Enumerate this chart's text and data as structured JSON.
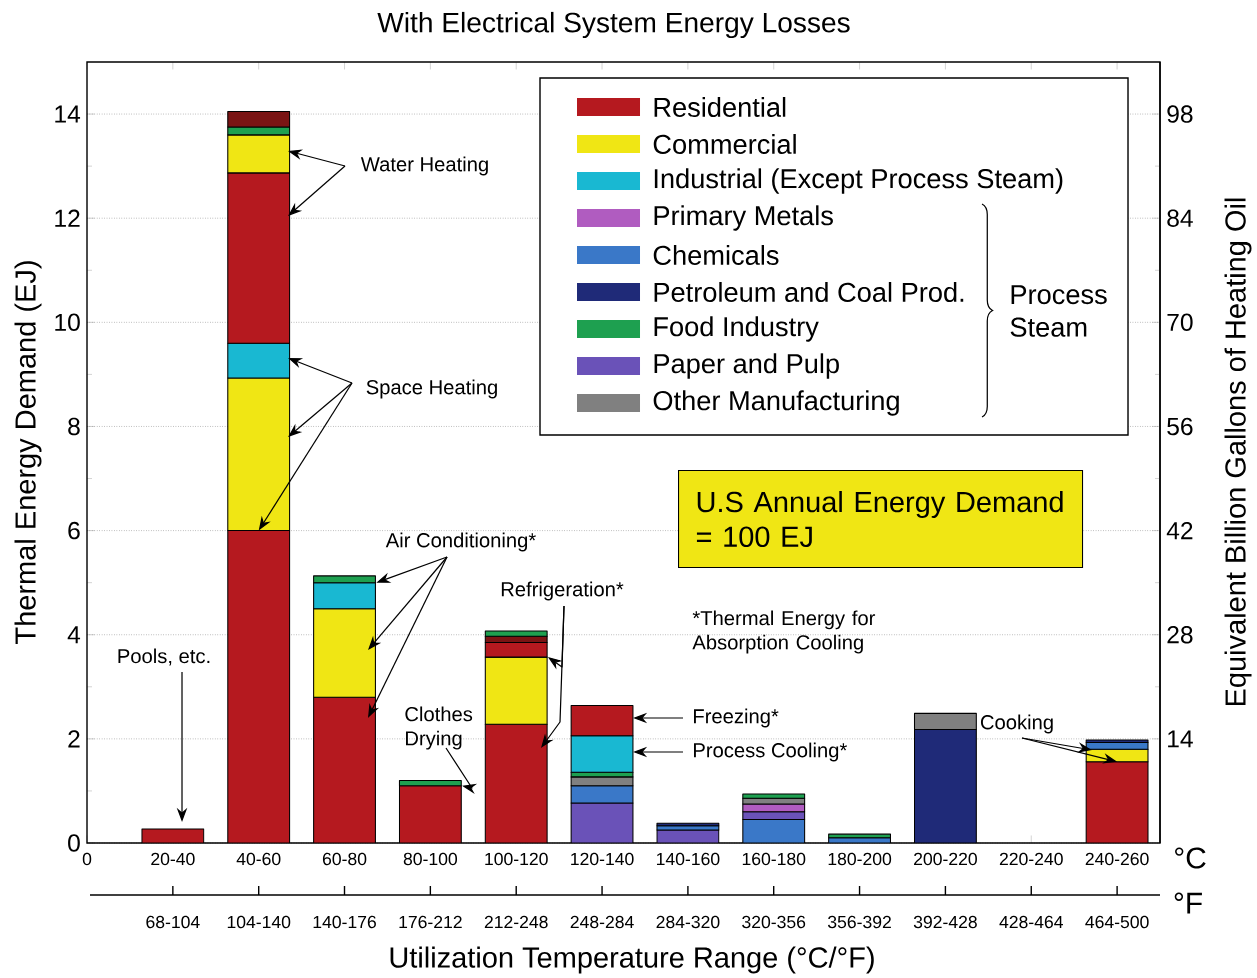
{
  "chart_data": {
    "type": "bar",
    "stacked": true,
    "title": "With Electrical System Energy Losses",
    "xlabel": "Utilization Temperature Range (°C/°F)",
    "ylabel": "Thermal Energy Demand (EJ)",
    "y2label": "Equivalent Billion Gallons of Heating Oil",
    "categories": [
      "0",
      "20-40",
      "40-60",
      "60-80",
      "80-100",
      "100-120",
      "120-140",
      "140-160",
      "160-180",
      "180-200",
      "200-220",
      "220-240",
      "240-260"
    ],
    "ylim": [
      0,
      15
    ],
    "yticks": [
      0,
      2,
      4,
      6,
      8,
      10,
      12,
      14
    ],
    "y2lim": [
      0,
      105
    ],
    "y2ticks": [
      14,
      28,
      42,
      56,
      70,
      84,
      98
    ],
    "grid": "y",
    "legend": "top right",
    "series": [
      {
        "name": "Residential",
        "color": "#b5191f",
        "values": [
          null,
          0.27,
          6.0,
          2.8,
          1.1,
          2.28,
          null,
          null,
          null,
          null,
          null,
          null,
          1.56
        ]
      },
      {
        "name": "Commercial",
        "color": "#f0e614",
        "values": [
          null,
          null,
          2.93,
          1.7,
          null,
          1.29,
          null,
          null,
          null,
          null,
          null,
          null,
          0.24
        ]
      },
      {
        "name": "Industrial (Except Process Steam)",
        "color": "#19b8d2",
        "values": [
          null,
          null,
          0.67,
          0.5,
          null,
          null,
          null,
          null,
          null,
          null,
          null,
          null,
          null
        ]
      },
      {
        "color": "#b5191f",
        "values": [
          null,
          null,
          3.27,
          null,
          null,
          0.28,
          null,
          null,
          null,
          null,
          null,
          null,
          null
        ]
      },
      {
        "color": "#f0e614",
        "values": [
          null,
          null,
          0.73,
          null,
          null,
          null,
          null,
          null,
          null,
          null,
          null,
          null,
          null
        ]
      },
      {
        "color": "#3a78c8",
        "values": [
          null,
          null,
          null,
          null,
          null,
          null,
          null,
          null,
          0.45,
          null,
          null,
          null,
          null
        ]
      },
      {
        "color": "#6a52b8",
        "values": [
          null,
          null,
          null,
          null,
          null,
          null,
          null,
          null,
          0.15,
          null,
          null,
          null,
          null
        ]
      },
      {
        "name": "Primary Metals",
        "color": "#b05cc0",
        "values": [
          null,
          null,
          null,
          null,
          null,
          null,
          null,
          null,
          0.15,
          null,
          null,
          null,
          null
        ]
      },
      {
        "name": "Chemicals",
        "color": "#3a78c8",
        "values": [
          null,
          null,
          null,
          null,
          null,
          null,
          null,
          null,
          null,
          0.1,
          null,
          null,
          0.13
        ]
      },
      {
        "name": "Petroleum and Coal Prod.",
        "color": "#1f2a78",
        "values": [
          null,
          null,
          null,
          null,
          null,
          null,
          null,
          null,
          null,
          null,
          2.18,
          null,
          0.05
        ]
      },
      {
        "name": "Food Industry",
        "color": "#1ea050",
        "values": [
          null,
          null,
          0.15,
          0.13,
          0.1,
          null,
          null,
          null,
          null,
          0.07,
          null,
          null,
          null
        ]
      },
      {
        "name": "Paper and Pulp",
        "color": "#6a52b8",
        "values": [
          null,
          null,
          null,
          null,
          null,
          null,
          0.77,
          0.25,
          null,
          null,
          null,
          null,
          null
        ]
      },
      {
        "name": "Other Manufacturing",
        "color": "#808080",
        "values": [
          null,
          null,
          null,
          null,
          null,
          null,
          null,
          null,
          null,
          null,
          0.31,
          null,
          null
        ]
      },
      {
        "color": "#3a78c8",
        "values": [
          null,
          null,
          null,
          null,
          null,
          null,
          0.33,
          0.08,
          null,
          null,
          null,
          null,
          null
        ]
      },
      {
        "color": "#1f2a78",
        "values": [
          null,
          null,
          null,
          null,
          null,
          null,
          null,
          0.05,
          null,
          null,
          null,
          null,
          null
        ]
      },
      {
        "color": "#808080",
        "values": [
          null,
          null,
          null,
          null,
          null,
          null,
          0.17,
          null,
          0.11,
          null,
          null,
          null,
          null
        ]
      },
      {
        "color": "#1ea050",
        "values": [
          null,
          null,
          null,
          null,
          null,
          null,
          0.09,
          null,
          0.08,
          null,
          null,
          null,
          null
        ]
      },
      {
        "color": "#19b8d2",
        "values": [
          null,
          null,
          null,
          null,
          null,
          null,
          0.7,
          null,
          null,
          null,
          null,
          null,
          null
        ]
      },
      {
        "color": "#b5191f",
        "values": [
          null,
          null,
          null,
          null,
          null,
          null,
          0.58,
          null,
          null,
          null,
          null,
          null,
          null
        ]
      },
      {
        "color": "#7a1414",
        "values": [
          null,
          null,
          0.3,
          null,
          null,
          0.12,
          null,
          null,
          null,
          null,
          null,
          null,
          null
        ]
      },
      {
        "color": "#1ea050",
        "values": [
          null,
          null,
          null,
          null,
          null,
          0.1,
          null,
          null,
          null,
          null,
          null,
          null,
          null
        ]
      }
    ],
    "annotations": [
      "Water Heating",
      {
        "text": "Space Heating",
        "x": "40-60",
        "y": 6.0
      },
      {
        "text": "Air Conditioning*",
        "x": "60-80",
        "y": 5.0
      },
      "Pools, etc.",
      {
        "text": "Clothes Drying",
        "x": "80-100",
        "y": 1.1
      },
      {
        "text": "Refrigeration*",
        "x": "100-120",
        "y": 3.57
      },
      "Freezing*",
      "Process Cooling*",
      {
        "text": "Cooking",
        "x": "240-260",
        "y": 1.56
      },
      "*Thermal Energy for Absorption Cooling",
      "U.S Annual Energy Demand = 100 EJ",
      "Process Steam",
      "°C",
      "°F",
      "68-104",
      "104-140",
      "140-176",
      "176-212",
      "212-248",
      "248-284",
      "284-320",
      "320-356",
      "356-392",
      "392-428",
      "428-464",
      "464-500"
    ]
  }
}
